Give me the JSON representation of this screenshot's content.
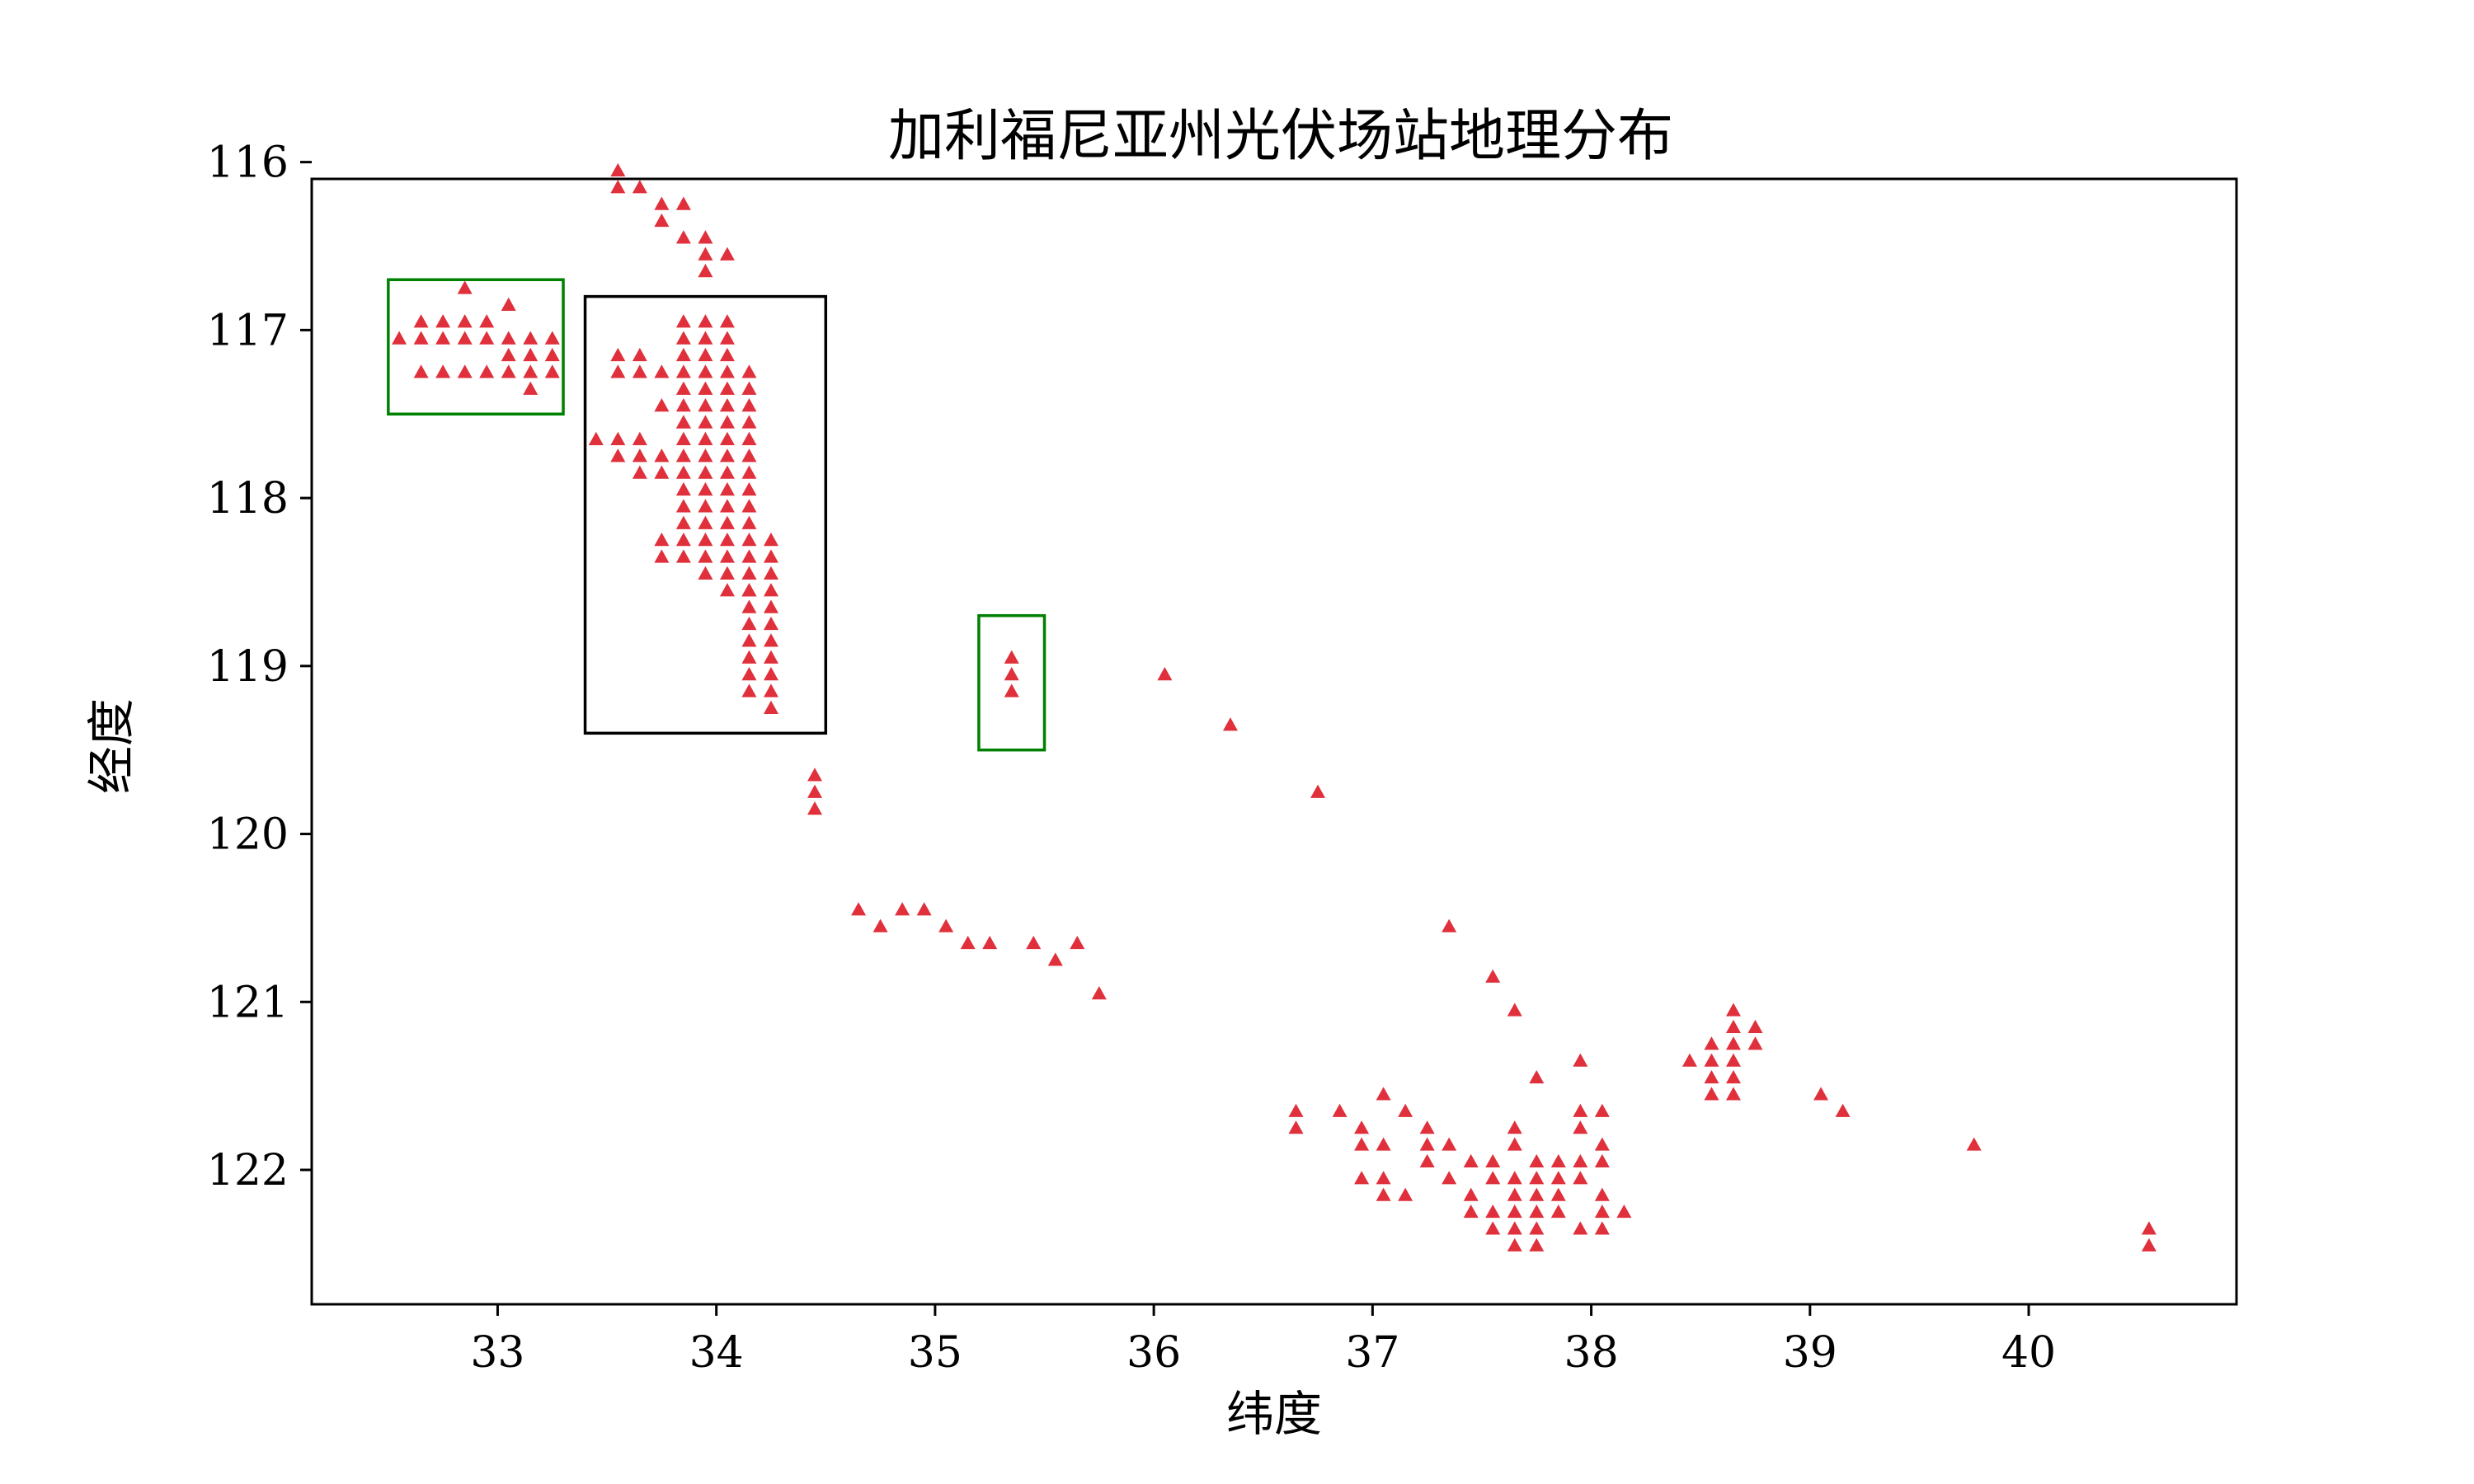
{
  "chart_data": {
    "type": "scatter",
    "title": "加利福尼亚州光伏场站地理分布",
    "xlabel": "纬度",
    "ylabel": "经度",
    "xlim": [
      32.15,
      40.95
    ],
    "ylim": [
      116.1,
      122.8
    ],
    "y_inverted": true,
    "xticks": [
      33,
      34,
      35,
      36,
      37,
      38,
      39,
      40
    ],
    "yticks": [
      116,
      117,
      118,
      119,
      120,
      121,
      122
    ],
    "marker": "triangle-up",
    "marker_color": "#e0303c",
    "grid": false,
    "series": [
      {
        "x": [
          32.55,
          32.65,
          32.75,
          32.85,
          32.95,
          33.05,
          33.15,
          33.25,
          32.65,
          32.75,
          32.85,
          32.95,
          33.05,
          33.15,
          33.25,
          32.65,
          32.75,
          32.85,
          32.95,
          33.05,
          33.15,
          33.25,
          32.85,
          33.05,
          33.15,
          33.55,
          33.55,
          33.65,
          33.75,
          33.75,
          33.85,
          33.85,
          33.95,
          33.95,
          34.05,
          33.95,
          33.55,
          33.55,
          33.65,
          33.65,
          33.75,
          33.45,
          33.55,
          33.55,
          33.65,
          33.65,
          33.65,
          33.75,
          33.75,
          33.75,
          33.75,
          33.75,
          33.85,
          33.85,
          33.85,
          33.85,
          33.85,
          33.85,
          33.85,
          33.85,
          33.85,
          33.85,
          33.85,
          33.85,
          33.85,
          33.85,
          33.85,
          33.85,
          33.95,
          33.95,
          33.95,
          33.95,
          33.95,
          33.95,
          33.95,
          33.95,
          33.95,
          33.95,
          33.95,
          33.95,
          33.95,
          33.95,
          33.95,
          33.95,
          34.05,
          34.05,
          34.05,
          34.05,
          34.05,
          34.05,
          34.05,
          34.05,
          34.05,
          34.05,
          34.05,
          34.05,
          34.05,
          34.05,
          34.05,
          34.05,
          34.05,
          34.15,
          34.15,
          34.15,
          34.15,
          34.15,
          34.15,
          34.15,
          34.15,
          34.15,
          34.15,
          34.15,
          34.15,
          34.15,
          34.15,
          34.15,
          34.15,
          34.15,
          34.15,
          34.15,
          34.15,
          34.15,
          34.15,
          34.25,
          34.25,
          34.25,
          34.25,
          34.25,
          34.25,
          34.25,
          34.25,
          34.25,
          34.25,
          34.25,
          35.35,
          35.35,
          35.35,
          34.45,
          34.45,
          34.45,
          34.65,
          34.75,
          34.85,
          34.95,
          35.05,
          35.15,
          35.25,
          35.45,
          35.55,
          35.65,
          35.75,
          36.05,
          36.35,
          36.75,
          37.35,
          37.55,
          37.65,
          37.75,
          37.95,
          36.65,
          36.65,
          36.85,
          36.95,
          36.95,
          36.95,
          37.05,
          37.05,
          37.05,
          37.05,
          37.15,
          37.15,
          37.25,
          37.25,
          37.25,
          37.35,
          37.35,
          37.45,
          37.45,
          37.45,
          37.55,
          37.55,
          37.55,
          37.55,
          37.65,
          37.65,
          37.65,
          37.65,
          37.65,
          37.65,
          37.65,
          37.75,
          37.75,
          37.75,
          37.75,
          37.75,
          37.75,
          37.85,
          37.85,
          37.85,
          37.85,
          37.95,
          37.95,
          37.95,
          37.95,
          37.95,
          38.05,
          38.05,
          38.05,
          38.05,
          38.05,
          38.05,
          38.15,
          38.45,
          38.55,
          38.55,
          38.55,
          38.55,
          38.65,
          38.65,
          38.65,
          38.65,
          38.65,
          38.65,
          38.75,
          38.75,
          39.05,
          39.15,
          39.75,
          40.55,
          40.55
        ],
        "y": [
          117.05,
          116.95,
          116.95,
          116.95,
          116.95,
          117.05,
          117.05,
          117.05,
          117.05,
          117.05,
          117.05,
          117.05,
          117.15,
          117.15,
          117.15,
          117.25,
          117.25,
          117.25,
          117.25,
          117.25,
          117.25,
          117.25,
          116.75,
          116.85,
          117.35,
          116.05,
          116.15,
          116.15,
          116.25,
          116.35,
          116.25,
          116.45,
          116.45,
          116.55,
          116.55,
          116.65,
          117.15,
          117.25,
          117.15,
          117.25,
          117.25,
          117.65,
          117.65,
          117.75,
          117.65,
          117.75,
          117.85,
          117.75,
          117.85,
          118.25,
          118.35,
          117.45,
          116.95,
          117.05,
          117.15,
          117.25,
          117.35,
          117.55,
          117.65,
          117.75,
          117.85,
          117.95,
          118.05,
          118.15,
          118.25,
          118.35,
          117.45,
          117.55,
          116.95,
          117.05,
          117.15,
          117.25,
          117.35,
          117.45,
          117.55,
          117.65,
          117.75,
          117.85,
          117.95,
          118.05,
          118.15,
          118.25,
          118.35,
          118.45,
          116.95,
          117.05,
          117.15,
          117.25,
          117.35,
          117.45,
          117.55,
          117.65,
          117.75,
          117.85,
          117.95,
          118.05,
          118.15,
          118.25,
          118.35,
          118.45,
          118.55,
          117.25,
          117.35,
          117.45,
          117.55,
          117.65,
          117.75,
          117.85,
          117.95,
          118.05,
          118.15,
          118.25,
          118.35,
          118.45,
          118.55,
          118.65,
          118.75,
          118.85,
          118.95,
          119.05,
          119.15,
          118.45,
          118.55,
          118.25,
          118.35,
          118.45,
          118.55,
          118.65,
          118.75,
          118.85,
          118.95,
          119.05,
          119.15,
          119.25,
          118.95,
          119.05,
          119.15,
          119.65,
          119.75,
          119.85,
          120.45,
          120.55,
          120.45,
          120.45,
          120.55,
          120.65,
          120.65,
          120.65,
          120.75,
          120.65,
          120.95,
          119.05,
          119.35,
          119.75,
          120.55,
          120.85,
          121.05,
          121.45,
          121.35,
          121.65,
          121.75,
          121.65,
          121.75,
          121.85,
          122.05,
          121.55,
          121.85,
          122.05,
          122.15,
          121.65,
          122.15,
          121.75,
          121.85,
          121.95,
          121.85,
          122.05,
          121.95,
          122.15,
          122.25,
          121.95,
          122.05,
          122.25,
          122.35,
          121.75,
          121.85,
          122.05,
          122.15,
          122.25,
          122.35,
          122.45,
          121.95,
          122.05,
          122.15,
          122.25,
          122.35,
          122.45,
          121.95,
          122.05,
          122.15,
          122.25,
          121.65,
          121.75,
          121.95,
          122.05,
          122.35,
          121.65,
          121.85,
          121.95,
          122.15,
          122.25,
          122.35,
          122.25,
          121.35,
          121.25,
          121.35,
          121.45,
          121.55,
          121.05,
          121.15,
          121.25,
          121.35,
          121.45,
          121.55,
          121.15,
          121.25,
          121.55,
          121.65,
          121.85,
          122.35,
          122.45
        ]
      }
    ],
    "highlight_boxes": [
      {
        "color": "#008000",
        "x_range": [
          32.5,
          33.3
        ],
        "y_range": [
          116.7,
          117.5
        ]
      },
      {
        "color": "#000000",
        "x_range": [
          33.4,
          34.5
        ],
        "y_range": [
          116.8,
          119.4
        ]
      },
      {
        "color": "#008000",
        "x_range": [
          35.2,
          35.5
        ],
        "y_range": [
          118.7,
          119.5
        ]
      }
    ]
  }
}
